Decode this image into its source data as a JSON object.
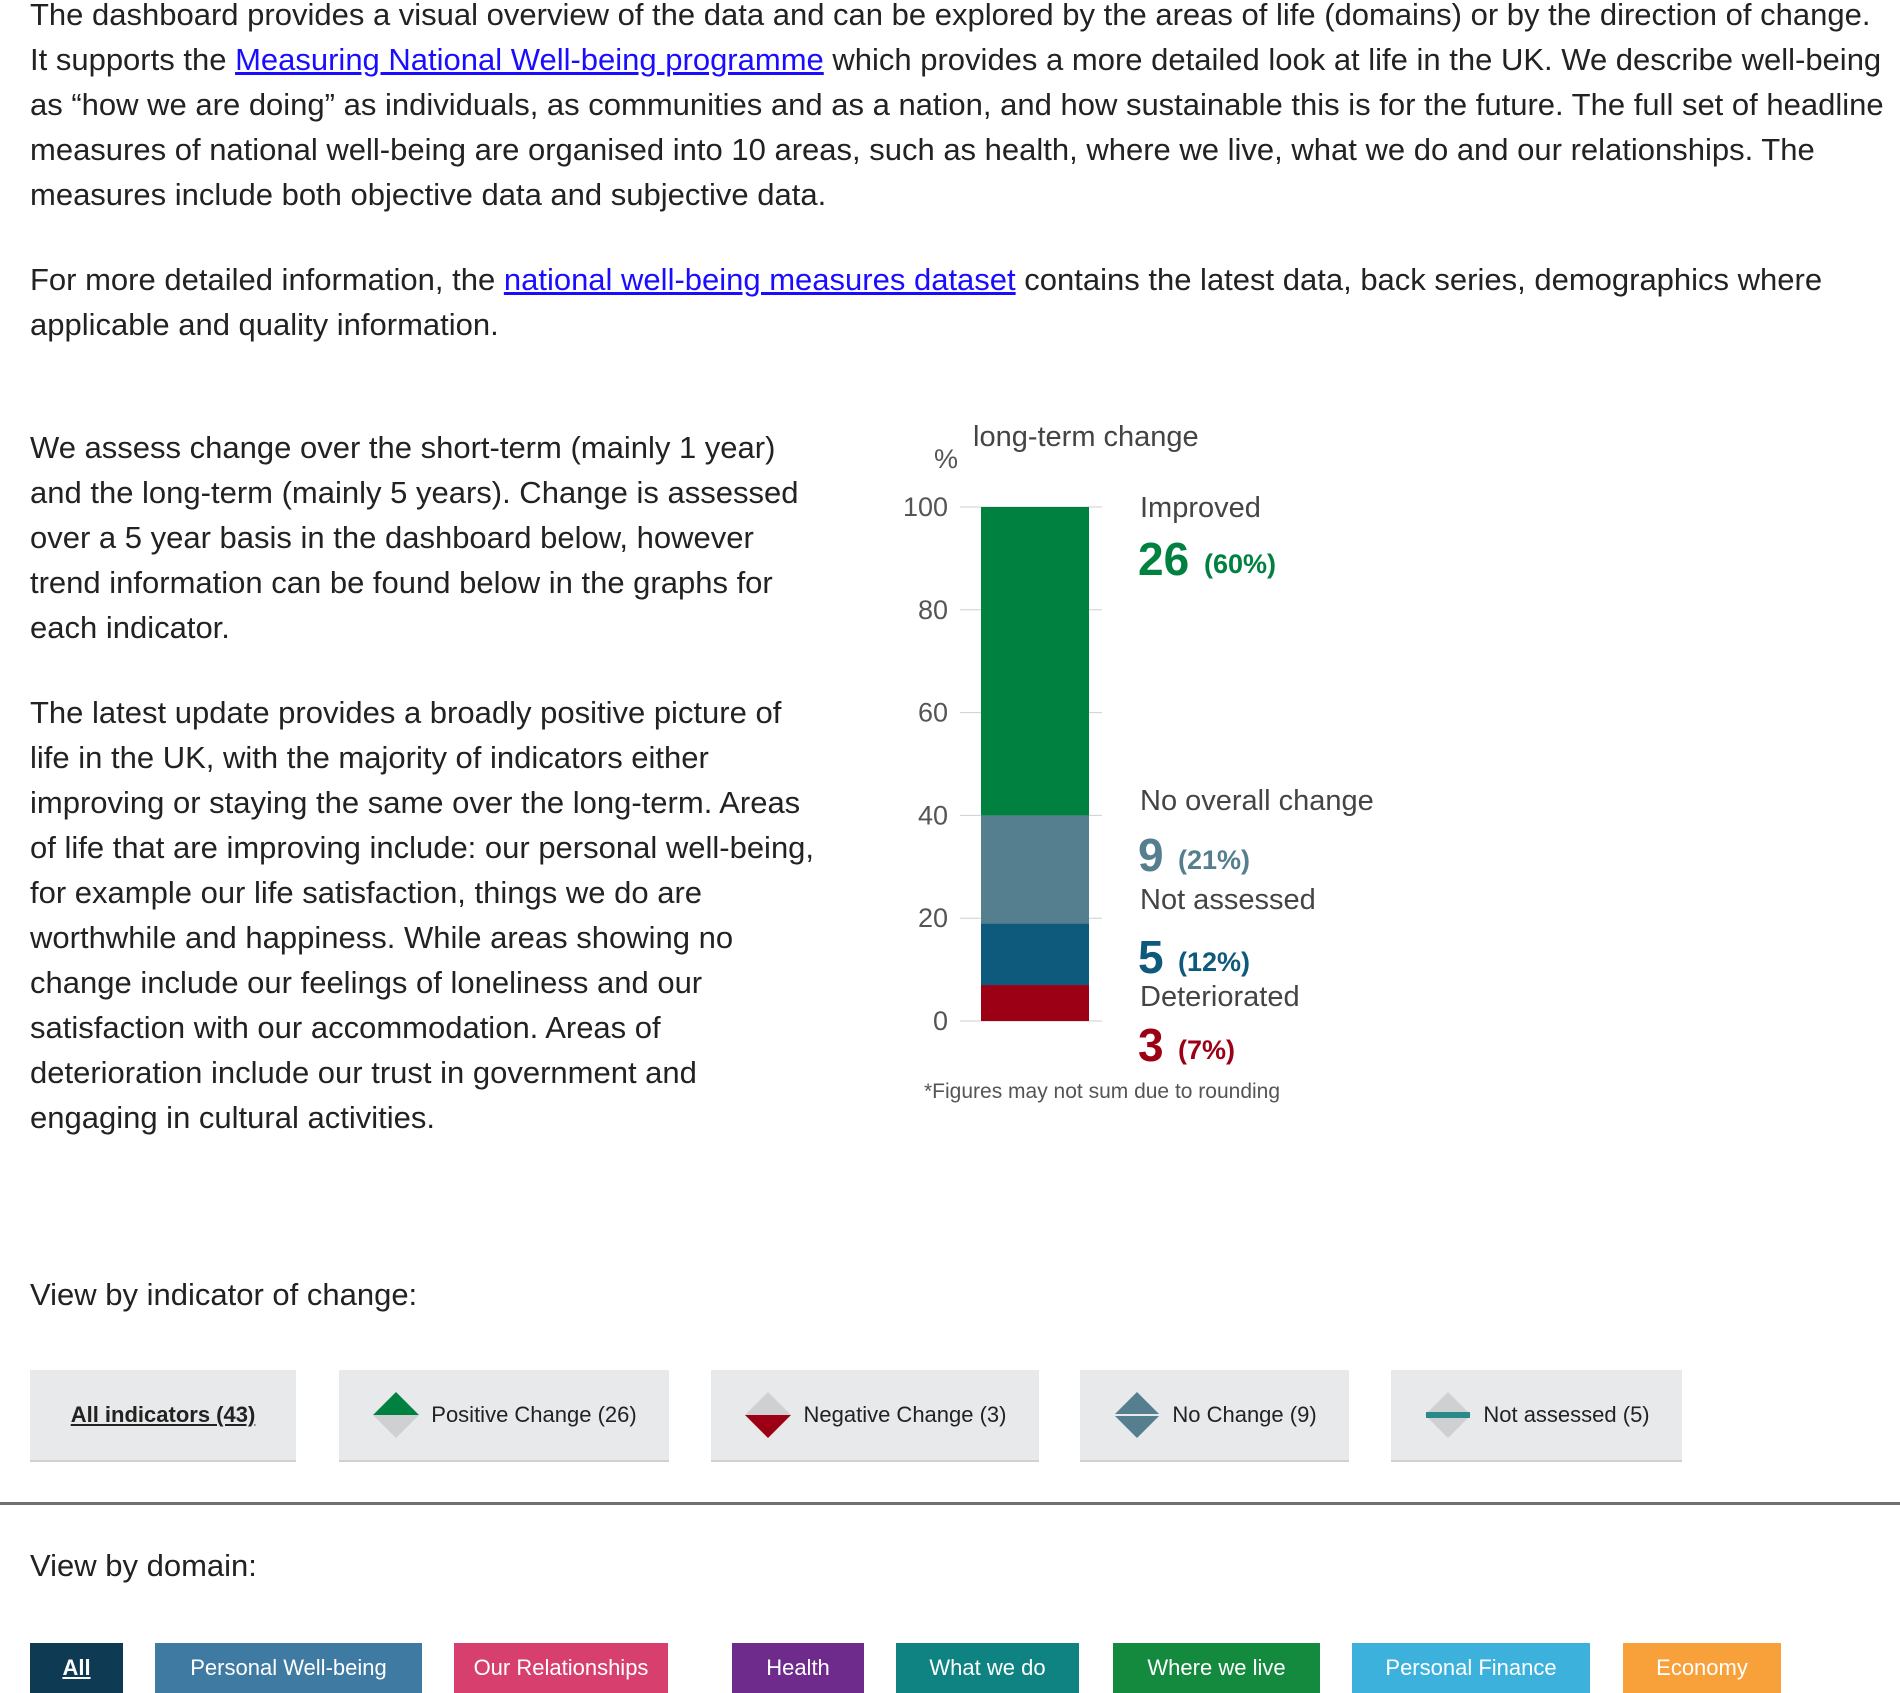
{
  "intro": {
    "p1_a": "The dashboard provides a visual overview of the data and can be explored by the areas of life (domains) or by the direction of change. It supports the ",
    "p1_link": "Measuring National Well-being programme",
    "p1_b": " which provides a more detailed look at life in the UK. We describe well-being as “how we are doing” as individuals, as communities and as a nation, and how sustainable this is for the future. The full set of headline measures of national well-being are organised into 10 areas, such as health, where we live, what we do and our relationships. The measures include both objective data and subjective data.",
    "p2_a": "For more detailed information, the ",
    "p2_link": "national well-being measures dataset",
    "p2_b": " contains the latest data, back series, demographics where applicable and quality information."
  },
  "summary": {
    "p1": "We assess change over the short-term (mainly 1 year) and the long-term (mainly 5 years). Change is assessed over a 5 year basis in the dashboard below, however trend information can be found below in the graphs for each indicator.",
    "p2": "The latest update provides a broadly positive picture of life in the UK, with the majority of indicators either improving or staying the same over the long-term. Areas of life that are improving include: our personal well-being, for example our life satisfaction, things we do are worthwhile and happiness. While areas showing no change include our feelings of loneliness and our satisfaction with our accommodation. Areas of deterioration include our trust in government and engaging in cultural activities."
  },
  "chart_data": {
    "type": "bar",
    "title": "long-term change",
    "ylabel": "%",
    "ylim": [
      0,
      100
    ],
    "yticks": [
      "0",
      "20",
      "40",
      "60",
      "80",
      "100"
    ],
    "footnote": "*Figures may not sum due to rounding",
    "series": [
      {
        "name": "Deteriorated",
        "count": "3",
        "pct_label": "(7%)",
        "value": 7,
        "color": "#9b0014"
      },
      {
        "name": "Not assessed",
        "count": "5",
        "pct_label": "(12%)",
        "value": 12,
        "color": "#0e5a7c"
      },
      {
        "name": "No overall change",
        "count": "9",
        "pct_label": "(21%)",
        "value": 21,
        "color": "#557f8e"
      },
      {
        "name": "Improved",
        "count": "26",
        "pct_label": "(60%)",
        "value": 60,
        "color": "#008140"
      }
    ]
  },
  "indicator_section": {
    "heading": "View by indicator of change:",
    "buttons": [
      {
        "label": "All indicators (43)",
        "icon": "none",
        "active": true
      },
      {
        "label": "Positive Change (26)",
        "icon": "positive-change-icon"
      },
      {
        "label": "Negative Change (3)",
        "icon": "negative-change-icon"
      },
      {
        "label": "No Change (9)",
        "icon": "no-change-icon"
      },
      {
        "label": "Not assessed (5)",
        "icon": "not-assessed-icon"
      }
    ]
  },
  "domain_section": {
    "heading": "View by domain:",
    "buttons": [
      {
        "label": "All",
        "color": "#0f3a54",
        "active": true
      },
      {
        "label": "Personal Well-being",
        "color": "#3f7aa2"
      },
      {
        "label": "Our Relationships",
        "color": "#d63f6e"
      },
      {
        "label": "Health",
        "color": "#6f2b8c"
      },
      {
        "label": "What we do",
        "color": "#0f8282"
      },
      {
        "label": "Where we live",
        "color": "#148a3f"
      },
      {
        "label": "Personal Finance",
        "color": "#3cb1db"
      },
      {
        "label": "Economy",
        "color": "#f8a03a"
      }
    ]
  }
}
